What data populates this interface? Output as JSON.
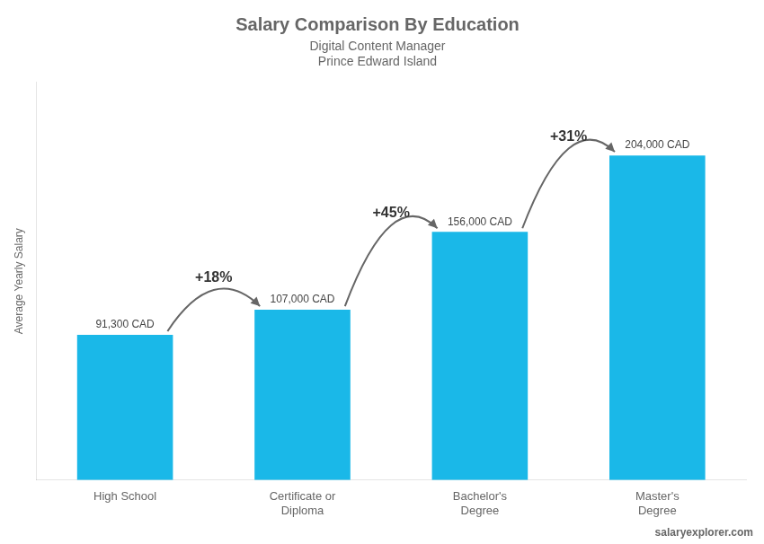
{
  "chart_data": {
    "type": "bar",
    "title": "Salary Comparison By Education",
    "subtitle": [
      "Digital Content Manager",
      "Prince Edward Island"
    ],
    "source": "salaryexplorer.com",
    "y_label": "Average Yearly Salary",
    "categories": [
      "High School",
      "Certificate or\nDiploma",
      "Bachelor's\nDegree",
      "Master's\nDegree"
    ],
    "values": [
      91300,
      107000,
      156000,
      204000
    ],
    "value_labels": [
      "91,300 CAD",
      "107,000 CAD",
      "156,000 CAD",
      "204,000 CAD"
    ],
    "data_labels": true,
    "color": "#1ab8e8",
    "ylim": [
      0,
      250000
    ],
    "tick_labels": "x",
    "annotations": [
      "+18%",
      "+45%",
      "+31%"
    ]
  }
}
